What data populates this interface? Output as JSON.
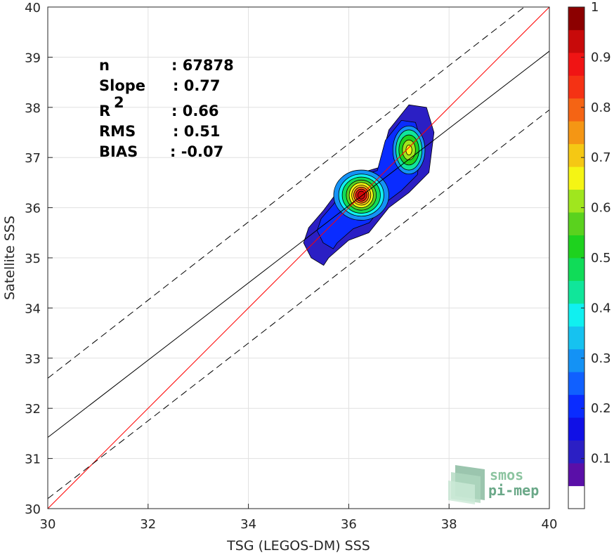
{
  "chart_data": {
    "type": "heatmap",
    "xlabel": "TSG (LEGOS-DM) SSS",
    "ylabel": "Satellite SSS",
    "xlim": [
      30,
      40
    ],
    "ylim": [
      30,
      40
    ],
    "x_ticks": [
      "30",
      "32",
      "34",
      "36",
      "38",
      "40"
    ],
    "y_ticks": [
      "30",
      "31",
      "32",
      "33",
      "34",
      "35",
      "36",
      "37",
      "38",
      "39",
      "40"
    ],
    "grid": true,
    "stats": [
      {
        "label": "n",
        "value": ": 67878"
      },
      {
        "label": "Slope",
        "value": ": 0.77"
      },
      {
        "label": "R",
        "sup": "2",
        "value": ": 0.66"
      },
      {
        "label": "RMS",
        "value": ": 0.51"
      },
      {
        "label": "BIAS",
        "value": ": -0.07"
      }
    ],
    "lines": [
      {
        "kind": "identity",
        "color": "#ff0000",
        "points": [
          [
            30,
            30
          ],
          [
            40,
            40
          ]
        ]
      },
      {
        "kind": "regression",
        "color": "#000000",
        "points": [
          [
            30,
            31.42
          ],
          [
            40,
            39.12
          ]
        ]
      },
      {
        "kind": "upper-bound",
        "color": "#000000",
        "dashed": true,
        "points": [
          [
            30,
            32.6
          ],
          [
            39.5,
            40
          ]
        ]
      },
      {
        "kind": "lower-bound",
        "color": "#000000",
        "dashed": true,
        "points": [
          [
            30,
            30.2
          ],
          [
            40,
            37.95
          ]
        ]
      }
    ],
    "density_peaks": [
      {
        "x": 36.25,
        "y": 36.25,
        "value": 0.9
      },
      {
        "x": 37.2,
        "y": 37.15,
        "value": 0.65
      }
    ],
    "colorbar": {
      "ticks": [
        "0.1",
        "0.2",
        "0.3",
        "0.4",
        "0.5",
        "0.6",
        "0.7",
        "0.8",
        "0.9",
        "1"
      ],
      "range": [
        0,
        1
      ],
      "colors": [
        "#ffffff",
        "#5a0fa8",
        "#2b1fc4",
        "#1010e6",
        "#0a2cff",
        "#1060ff",
        "#1492f5",
        "#16c2f0",
        "#10f0f0",
        "#10e69a",
        "#10dc58",
        "#1ed21e",
        "#5ad21e",
        "#a0e61e",
        "#f5f514",
        "#f5c814",
        "#f59614",
        "#f56414",
        "#f53214",
        "#f01414",
        "#c80a0a",
        "#8c0000"
      ]
    }
  },
  "logo": {
    "line1": "smos",
    "line2": "pi-mep"
  }
}
